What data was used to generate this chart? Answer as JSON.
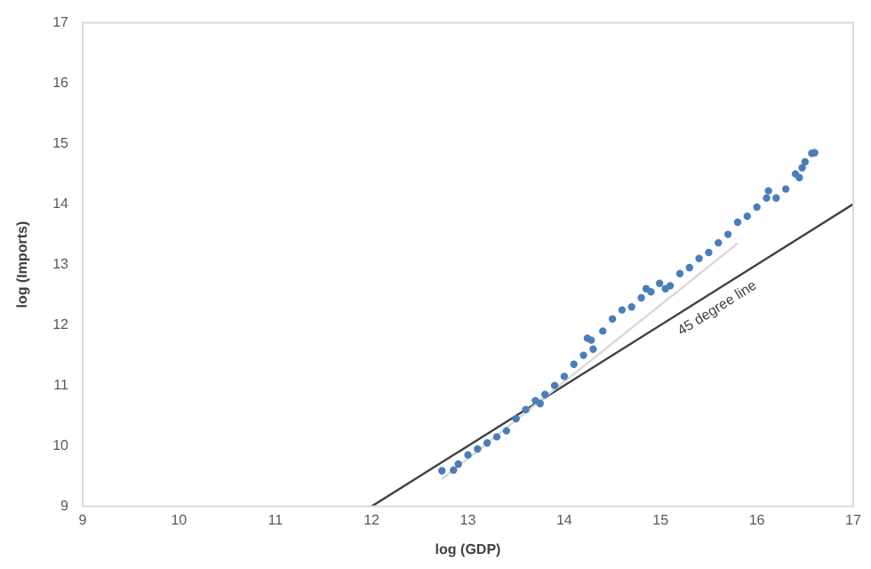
{
  "chart_data": {
    "type": "scatter",
    "xlabel": "log (GDP)",
    "ylabel": "log (Imports)",
    "xlim": [
      9,
      17
    ],
    "ylim": [
      9,
      17
    ],
    "xticks": [
      9,
      10,
      11,
      12,
      13,
      14,
      15,
      16,
      17
    ],
    "yticks": [
      9,
      10,
      11,
      12,
      13,
      14,
      15,
      16,
      17
    ],
    "grid": false,
    "legend": false,
    "series": [
      {
        "marker": "circle",
        "color": "#4a7ebb",
        "x": [
          12.73,
          12.85,
          12.9,
          13.0,
          13.1,
          13.2,
          13.3,
          13.4,
          13.5,
          13.6,
          13.7,
          13.75,
          13.8,
          13.9,
          14.0,
          14.1,
          14.2,
          14.24,
          14.28,
          14.3,
          14.4,
          14.5,
          14.6,
          14.7,
          14.8,
          14.85,
          14.9,
          14.99,
          15.05,
          15.1,
          15.2,
          15.3,
          15.4,
          15.5,
          15.6,
          15.7,
          15.8,
          15.9,
          16.0,
          16.1,
          16.12,
          16.2,
          16.3,
          16.4,
          16.44,
          16.47,
          16.5,
          16.57,
          16.6
        ],
        "values": [
          9.59,
          9.6,
          9.7,
          9.85,
          9.95,
          10.05,
          10.15,
          10.25,
          10.45,
          10.6,
          10.75,
          10.7,
          10.85,
          11.0,
          11.15,
          11.35,
          11.5,
          11.78,
          11.75,
          11.6,
          11.9,
          12.1,
          12.25,
          12.3,
          12.45,
          12.6,
          12.55,
          12.69,
          12.6,
          12.65,
          12.85,
          12.95,
          13.1,
          13.2,
          13.36,
          13.5,
          13.7,
          13.8,
          13.95,
          14.1,
          14.22,
          14.1,
          14.25,
          14.5,
          14.44,
          14.6,
          14.7,
          14.84,
          14.85
        ]
      },
      {
        "type": "line",
        "color": "#d9d9d9",
        "x": [
          12.73,
          15.8
        ],
        "values": [
          9.45,
          13.35
        ]
      },
      {
        "type": "line",
        "color": "#404040",
        "x": [
          12,
          17
        ],
        "values": [
          9,
          14
        ]
      }
    ],
    "annotations": [
      {
        "text": "45 degree line",
        "x": 15.5,
        "y": 12.5
      }
    ]
  }
}
